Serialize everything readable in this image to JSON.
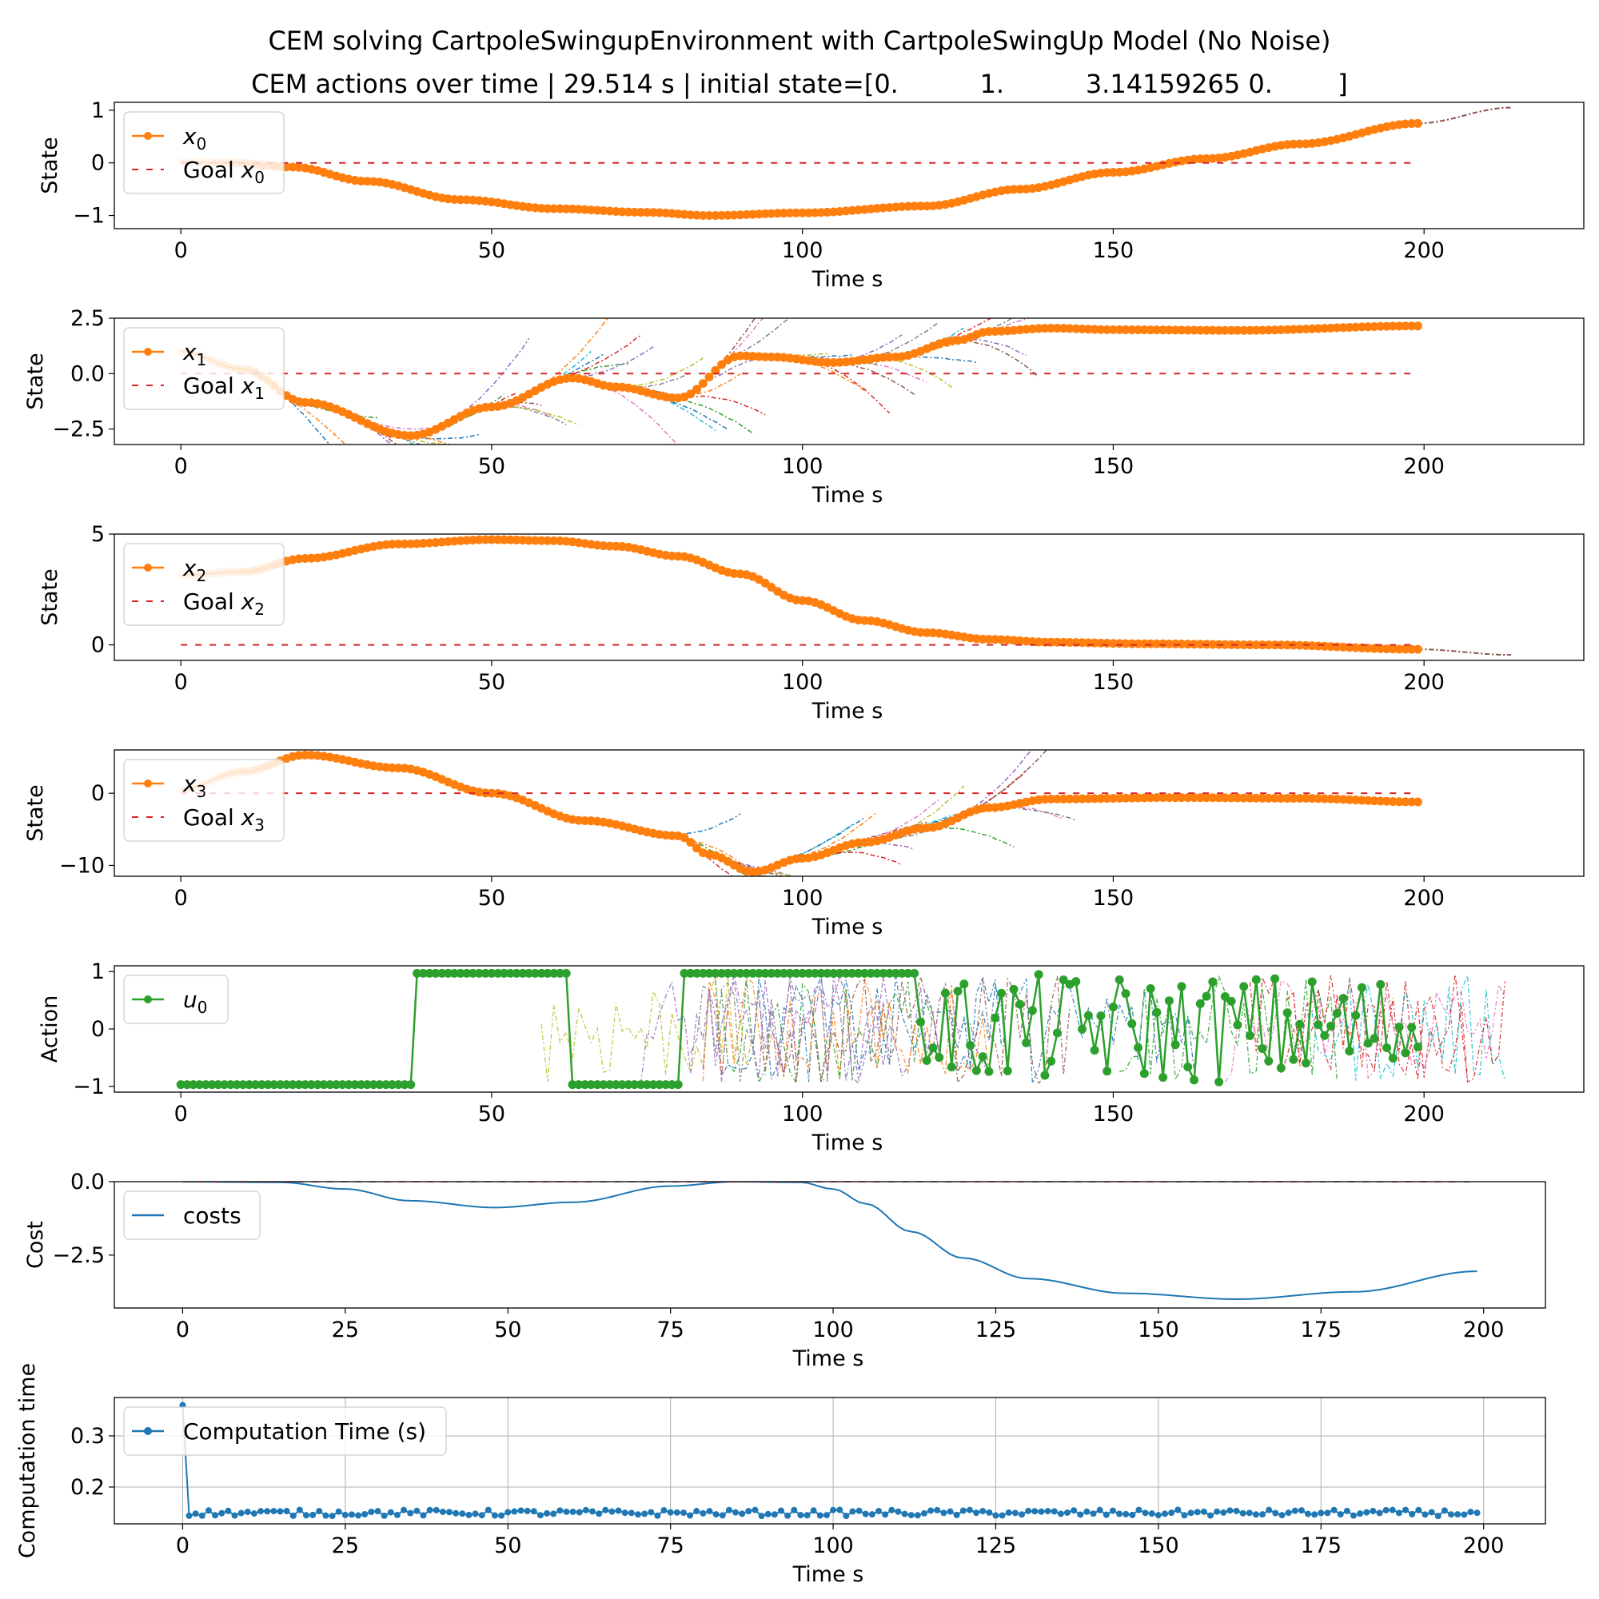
{
  "figure": {
    "title": "CEM solving CartpoleSwingupEnvironment with CartpoleSwingUp Model (No Noise)",
    "subtitle": "CEM actions over time | 29.514 s | initial state=[0.          1.          3.14159265 0.        ]"
  },
  "colors": {
    "state_series": "#ff7f0e",
    "action_series": "#2ca02c",
    "cost_series": "#1f77b4",
    "compute_series": "#1f77b4",
    "goal_line": "#d62728",
    "rollout_palette": [
      "#1f77b4",
      "#ff7f0e",
      "#2ca02c",
      "#d62728",
      "#9467bd",
      "#8c564b",
      "#e377c2",
      "#7f7f7f",
      "#bcbd22",
      "#17becf"
    ]
  },
  "chart_data": [
    {
      "type": "line",
      "id": "x0",
      "xlabel": "Time s",
      "ylabel": "State",
      "xlim": [
        -10.7,
        225.7
      ],
      "ylim": [
        -1.25,
        1.15
      ],
      "xticks": [
        0,
        50,
        100,
        150,
        200
      ],
      "yticks": [
        1,
        0,
        -1
      ],
      "ytick_labels": [
        "1",
        "0",
        "−1"
      ],
      "legend_position": "upper left",
      "grid": false,
      "series": [
        {
          "name": "x",
          "sub": "0",
          "style": "line-marker",
          "x_range": [
            0,
            199
          ],
          "knots_x": [
            0,
            8,
            18,
            30,
            45,
            60,
            75,
            85,
            100,
            120,
            135,
            150,
            165,
            180,
            199
          ],
          "knots_y": [
            0.02,
            0.0,
            -0.08,
            -0.35,
            -0.7,
            -0.87,
            -0.94,
            -1.0,
            -0.95,
            -0.82,
            -0.5,
            -0.18,
            0.08,
            0.36,
            0.75
          ]
        },
        {
          "name": "Goal x",
          "sub": "0",
          "style": "goal",
          "value": 0,
          "x_range": [
            0,
            199
          ]
        }
      ],
      "rollouts": {
        "type": "extension",
        "knots_x": [
          199,
          214
        ],
        "knots_y": [
          0.75,
          1.05
        ]
      }
    },
    {
      "type": "line",
      "id": "x1",
      "xlabel": "Time s",
      "ylabel": "State",
      "xlim": [
        -10.7,
        225.7
      ],
      "ylim": [
        -3.2,
        2.5
      ],
      "xticks": [
        0,
        50,
        100,
        150,
        200
      ],
      "yticks": [
        2.5,
        0,
        -2.5
      ],
      "ytick_labels": [
        "2.5",
        "0.0",
        "−2.5"
      ],
      "legend_position": "upper left",
      "grid": false,
      "series": [
        {
          "name": "x",
          "sub": "1",
          "style": "line-marker",
          "x_range": [
            0,
            199
          ],
          "knots_x": [
            0,
            10,
            20,
            37,
            50,
            63,
            70,
            80,
            90,
            95,
            105,
            115,
            125,
            130,
            140,
            150,
            170,
            199
          ],
          "knots_y": [
            1.0,
            0.2,
            -1.3,
            -2.8,
            -1.5,
            -0.2,
            -0.6,
            -1.1,
            0.8,
            0.75,
            0.5,
            0.75,
            1.5,
            1.9,
            2.05,
            1.98,
            1.95,
            2.15
          ]
        },
        {
          "name": "Goal x",
          "sub": "1",
          "style": "goal",
          "value": 0,
          "x_range": [
            0,
            199
          ]
        }
      ],
      "rollouts": {
        "type": "fan",
        "start": 14,
        "end": 128,
        "step": 2,
        "horizon": 14,
        "spread": 0.55
      }
    },
    {
      "type": "line",
      "id": "x2",
      "xlabel": "Time s",
      "ylabel": "State",
      "xlim": [
        -10.7,
        225.7
      ],
      "ylim": [
        -0.7,
        5.0
      ],
      "xticks": [
        0,
        50,
        100,
        150,
        200
      ],
      "yticks": [
        5,
        0
      ],
      "ytick_labels": [
        "5",
        "0"
      ],
      "legend_position": "upper left",
      "grid": false,
      "series": [
        {
          "name": "x",
          "sub": "2",
          "style": "line-marker",
          "x_range": [
            0,
            199
          ],
          "knots_x": [
            0,
            10,
            20,
            35,
            50,
            60,
            70,
            80,
            90,
            100,
            110,
            120,
            130,
            140,
            155,
            175,
            199
          ],
          "knots_y": [
            3.14,
            3.3,
            3.9,
            4.55,
            4.75,
            4.7,
            4.45,
            4.0,
            3.2,
            2.0,
            1.1,
            0.55,
            0.25,
            0.12,
            0.05,
            0.0,
            -0.2
          ]
        },
        {
          "name": "Goal x",
          "sub": "2",
          "style": "goal",
          "value": 0,
          "x_range": [
            0,
            199
          ]
        }
      ],
      "rollouts": {
        "type": "extension",
        "knots_x": [
          199,
          214
        ],
        "knots_y": [
          -0.2,
          -0.45
        ]
      }
    },
    {
      "type": "line",
      "id": "x3",
      "xlabel": "Time s",
      "ylabel": "State",
      "xlim": [
        -10.7,
        225.7
      ],
      "ylim": [
        -11.5,
        6.0
      ],
      "xticks": [
        0,
        50,
        100,
        150,
        200
      ],
      "yticks": [
        0,
        -10
      ],
      "ytick_labels": [
        "0",
        "−10"
      ],
      "legend_position": "upper left",
      "grid": false,
      "series": [
        {
          "name": "x",
          "sub": "3",
          "style": "line-marker",
          "x_range": [
            0,
            199
          ],
          "knots_x": [
            0,
            10,
            20,
            35,
            50,
            65,
            80,
            85,
            92,
            100,
            110,
            120,
            130,
            140,
            160,
            180,
            199
          ],
          "knots_y": [
            0.5,
            3.0,
            5.3,
            3.5,
            0.0,
            -3.8,
            -5.9,
            -8.5,
            -10.9,
            -9.0,
            -6.8,
            -4.8,
            -2.0,
            -0.8,
            -0.6,
            -0.7,
            -1.2
          ]
        },
        {
          "name": "Goal x",
          "sub": "3",
          "style": "goal",
          "value": 0,
          "x_range": [
            0,
            199
          ]
        }
      ],
      "rollouts": {
        "type": "fan",
        "start": 76,
        "end": 130,
        "step": 2,
        "horizon": 14,
        "spread": 1.6
      }
    },
    {
      "type": "line",
      "id": "u0",
      "xlabel": "Time s",
      "ylabel": "Action",
      "xlim": [
        -10.7,
        225.7
      ],
      "ylim": [
        -1.1,
        1.1
      ],
      "xticks": [
        0,
        50,
        100,
        150,
        200
      ],
      "yticks": [
        1,
        0,
        -1
      ],
      "ytick_labels": [
        "1",
        "0",
        "−1"
      ],
      "legend_position": "upper left",
      "grid": false,
      "series": [
        {
          "name": "u",
          "sub": "0",
          "style": "action",
          "segments": [
            {
              "x_range": [
                0,
                37
              ],
              "value": -0.97
            },
            {
              "x_range": [
                38,
                62
              ],
              "value": 0.97
            },
            {
              "x_range": [
                63,
                80
              ],
              "value": -0.97
            },
            {
              "x_range": [
                81,
                118
              ],
              "value": 0.97
            },
            {
              "x_range": [
                119,
                199
              ],
              "value": "random"
            }
          ]
        }
      ],
      "rollouts": {
        "type": "noise",
        "start": 5,
        "end": 213
      }
    },
    {
      "type": "line",
      "id": "cost",
      "xlabel": "Time s",
      "ylabel": "Cost",
      "xlim": [
        -10.5,
        209.5
      ],
      "ylim": [
        -4.3,
        0.0
      ],
      "xticks": [
        0,
        25,
        50,
        75,
        100,
        125,
        150,
        175,
        200
      ],
      "yticks": [
        0,
        -2.5
      ],
      "ytick_labels": [
        "0.0",
        "−2.5"
      ],
      "legend_position": "upper left",
      "grid": false,
      "series": [
        {
          "name": "costs",
          "style": "line",
          "x_range": [
            0,
            199
          ],
          "knots_x": [
            0,
            15,
            25,
            35,
            48,
            60,
            75,
            85,
            95,
            100,
            105,
            112,
            120,
            130,
            145,
            162,
            180,
            199
          ],
          "knots_y": [
            0.0,
            -0.02,
            -0.25,
            -0.65,
            -0.88,
            -0.7,
            -0.15,
            0.0,
            -0.02,
            -0.25,
            -0.75,
            -1.7,
            -2.6,
            -3.3,
            -3.8,
            -4.0,
            -3.75,
            -3.05
          ]
        },
        {
          "name": "",
          "style": "goal",
          "value": 0,
          "x_range": [
            0,
            199
          ]
        }
      ]
    },
    {
      "type": "line",
      "id": "comp",
      "xlabel": "Time s",
      "ylabel": "Computation time",
      "xlim": [
        -10.5,
        209.5
      ],
      "ylim": [
        0.128,
        0.375
      ],
      "xticks": [
        0,
        25,
        50,
        75,
        100,
        125,
        150,
        175,
        200
      ],
      "yticks": [
        0.3,
        0.2
      ],
      "ytick_labels": [
        "0.3",
        "0.2"
      ],
      "legend_position": "upper left",
      "grid": true,
      "series": [
        {
          "name": "Computation Time (s)",
          "style": "marker-line",
          "x_range": [
            0,
            199
          ],
          "first_value": 0.36,
          "base": 0.147,
          "jitter": 0.012
        }
      ]
    }
  ]
}
